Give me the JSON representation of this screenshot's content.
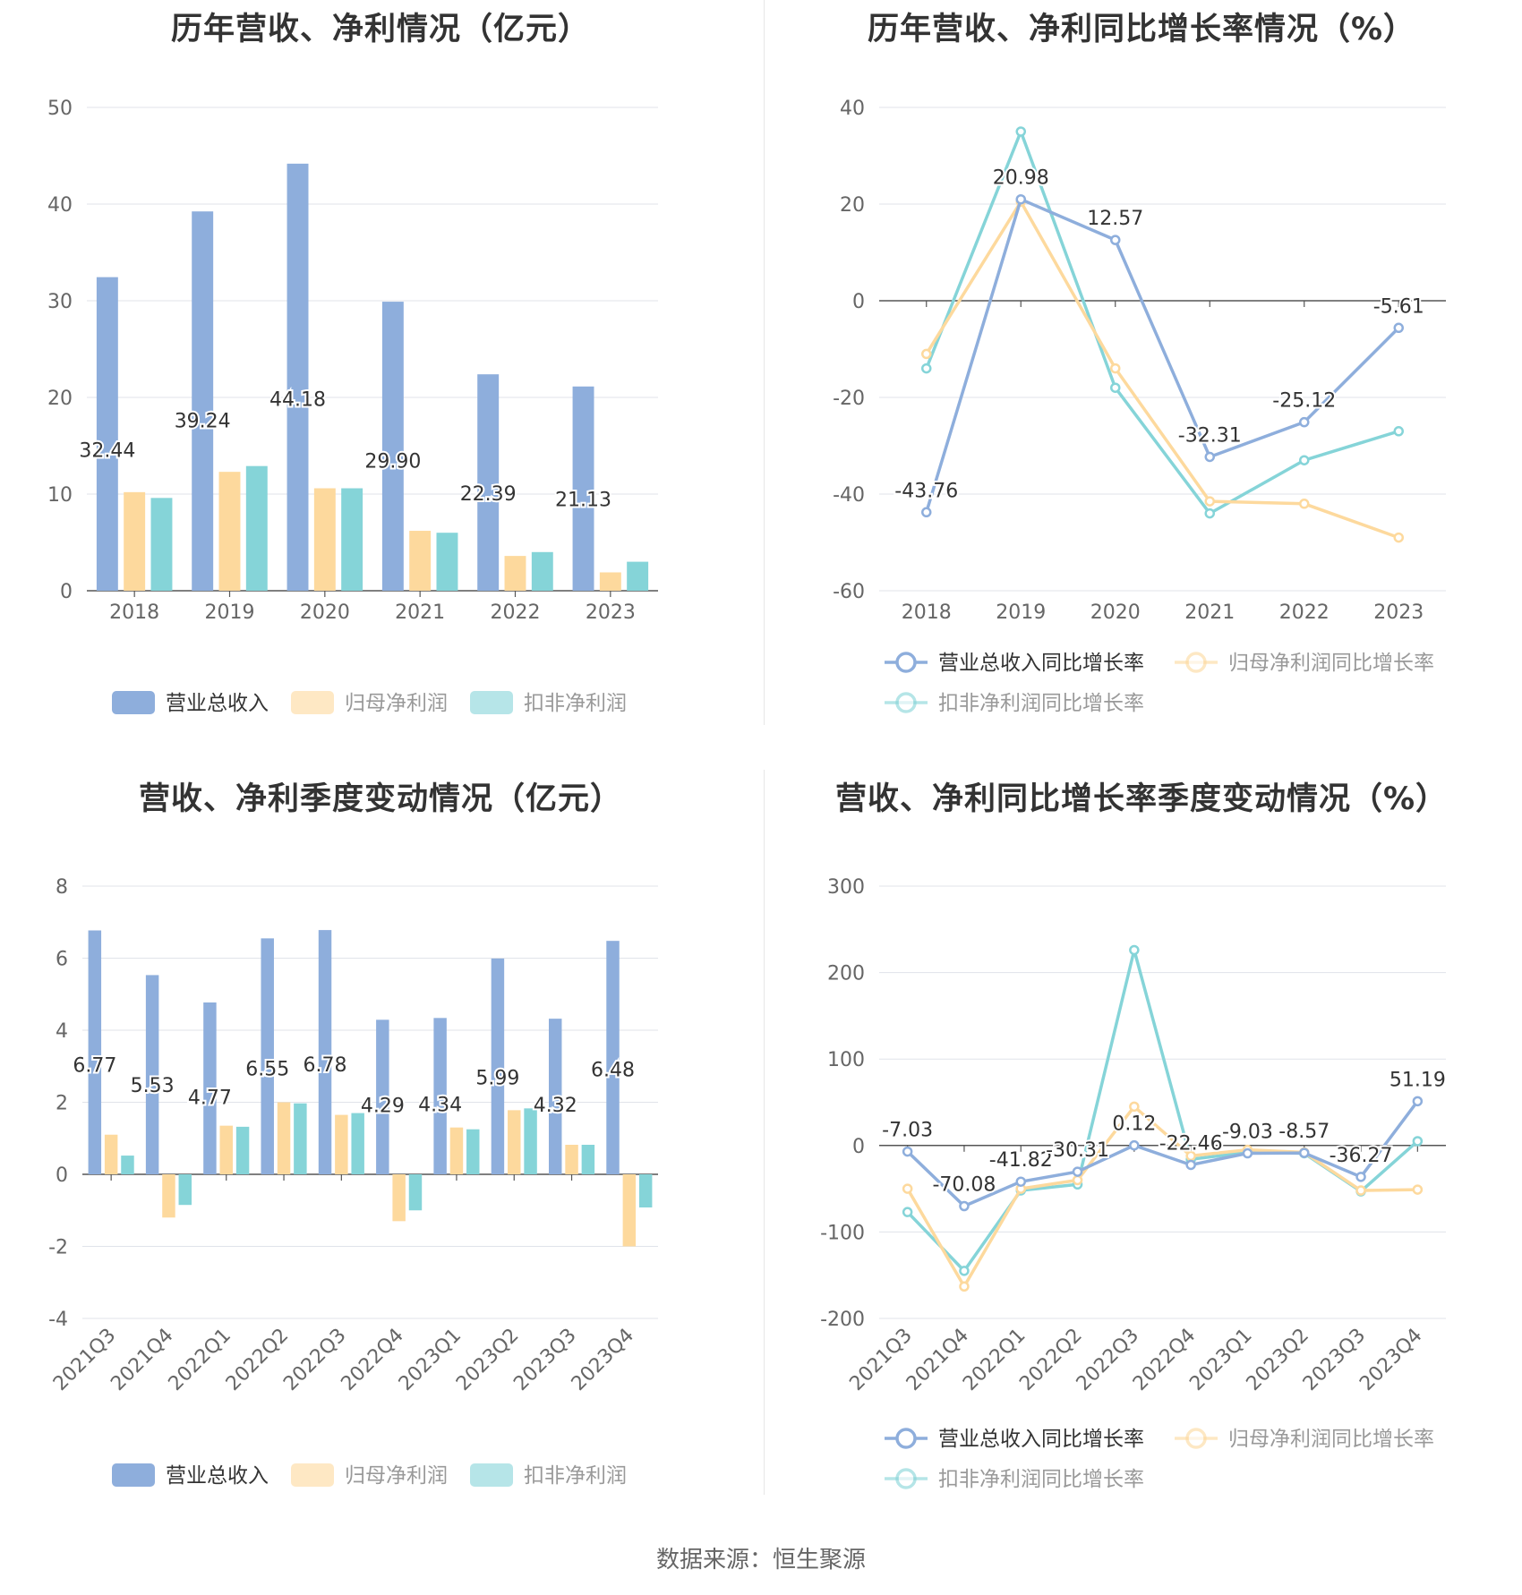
{
  "source": {
    "label": "数据来源：",
    "name": "恒生聚源"
  },
  "charts": [
    {
      "id": "annual-amount",
      "title": "历年营收、净利情况（亿元）",
      "type": "bar",
      "categories": [
        "2018",
        "2019",
        "2020",
        "2021",
        "2022",
        "2023"
      ],
      "ylim": [
        0,
        50
      ],
      "yticks": [
        0,
        10,
        20,
        30,
        40,
        50
      ],
      "series": [
        {
          "name": "营业总收入",
          "color": "#8eaedc",
          "values": [
            32.44,
            39.24,
            44.18,
            29.9,
            22.39,
            21.13
          ],
          "labels": [
            "32.44",
            "39.24",
            "44.18",
            "29.90",
            "22.39",
            "21.13"
          ]
        },
        {
          "name": "归母净利润",
          "color": "#fdd99d",
          "values": [
            10.2,
            12.3,
            10.6,
            6.2,
            3.6,
            1.9
          ]
        },
        {
          "name": "扣非净利润",
          "color": "#85d4d8",
          "values": [
            9.6,
            12.9,
            10.6,
            6.0,
            4.0,
            3.0
          ]
        }
      ]
    },
    {
      "id": "annual-growth",
      "title": "历年营收、净利同比增长率情况（%）",
      "type": "line",
      "categories": [
        "2018",
        "2019",
        "2020",
        "2021",
        "2022",
        "2023"
      ],
      "ylim": [
        -60,
        40
      ],
      "yticks": [
        -60,
        -40,
        -20,
        0,
        20,
        40
      ],
      "series": [
        {
          "name": "营业总收入同比增长率",
          "color": "#8eaedc",
          "values": [
            -43.76,
            20.98,
            12.57,
            -32.31,
            -25.12,
            -5.61
          ],
          "labels": [
            "-43.76",
            "20.98",
            "12.57",
            "-32.31",
            "-25.12",
            "-5.61"
          ]
        },
        {
          "name": "归母净利润同比增长率",
          "color": "#fdd99d",
          "values": [
            -11,
            20.5,
            -14,
            -41.5,
            -42,
            -49
          ]
        },
        {
          "name": "扣非净利润同比增长率",
          "color": "#85d4d8",
          "values": [
            -14,
            35,
            -18,
            -44,
            -33,
            -27
          ]
        }
      ]
    },
    {
      "id": "quarter-amount",
      "title": "营收、净利季度变动情况（亿元）",
      "type": "bar",
      "categories": [
        "2021Q3",
        "2021Q4",
        "2022Q1",
        "2022Q2",
        "2022Q3",
        "2022Q4",
        "2023Q1",
        "2023Q2",
        "2023Q3",
        "2023Q4"
      ],
      "ylim": [
        -4,
        8
      ],
      "yticks": [
        -4,
        -2,
        0,
        2,
        4,
        6,
        8
      ],
      "series": [
        {
          "name": "营业总收入",
          "color": "#8eaedc",
          "values": [
            6.77,
            5.53,
            4.77,
            6.55,
            6.78,
            4.29,
            4.34,
            5.99,
            4.32,
            6.48
          ],
          "labels": [
            "6.77",
            "5.53",
            "4.77",
            "6.55",
            "6.78",
            "4.29",
            "4.34",
            "5.99",
            "4.32",
            "6.48"
          ]
        },
        {
          "name": "归母净利润",
          "color": "#fdd99d",
          "values": [
            1.1,
            -1.2,
            1.35,
            2.0,
            1.65,
            -1.3,
            1.3,
            1.78,
            0.82,
            -2.0
          ]
        },
        {
          "name": "扣非净利润",
          "color": "#85d4d8",
          "values": [
            0.52,
            -0.85,
            1.32,
            1.97,
            1.7,
            -1.0,
            1.25,
            1.83,
            0.82,
            -0.92
          ]
        }
      ]
    },
    {
      "id": "quarter-growth",
      "title": "营收、净利同比增长率季度变动情况（%）",
      "type": "line",
      "categories": [
        "2021Q3",
        "2021Q4",
        "2022Q1",
        "2022Q2",
        "2022Q3",
        "2022Q4",
        "2023Q1",
        "2023Q2",
        "2023Q3",
        "2023Q4"
      ],
      "ylim": [
        -200,
        300
      ],
      "yticks": [
        -200,
        -100,
        0,
        100,
        200,
        300
      ],
      "series": [
        {
          "name": "营业总收入同比增长率",
          "color": "#8eaedc",
          "values": [
            -7.03,
            -70.08,
            -41.82,
            -30.31,
            0.12,
            -22.46,
            -9.03,
            -8.57,
            -36.27,
            51.19
          ],
          "labels": [
            "-7.03",
            "-70.08",
            "-41.82",
            "-30.31",
            "0.12",
            "-22.46",
            "-9.03",
            "-8.57",
            "-36.27",
            "51.19"
          ]
        },
        {
          "name": "归母净利润同比增长率",
          "color": "#fdd99d",
          "values": [
            -50,
            -163,
            -50,
            -40,
            45,
            -12,
            -5,
            -8,
            -52,
            -51
          ]
        },
        {
          "name": "扣非净利润同比增长率",
          "color": "#85d4d8",
          "values": [
            -77,
            -145,
            -52,
            -45,
            226,
            -16,
            -8,
            -9,
            -53,
            5
          ]
        }
      ]
    }
  ]
}
